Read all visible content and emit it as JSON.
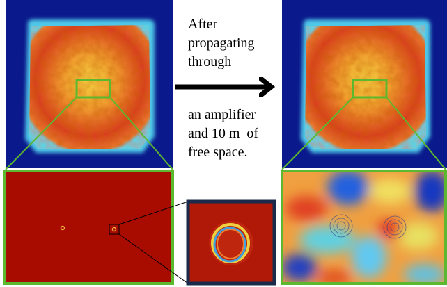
{
  "text": {
    "before": [
      "After",
      "propagating",
      "through"
    ],
    "after": [
      "an amplifier",
      "and 10 m  of",
      "free space."
    ]
  }
}
